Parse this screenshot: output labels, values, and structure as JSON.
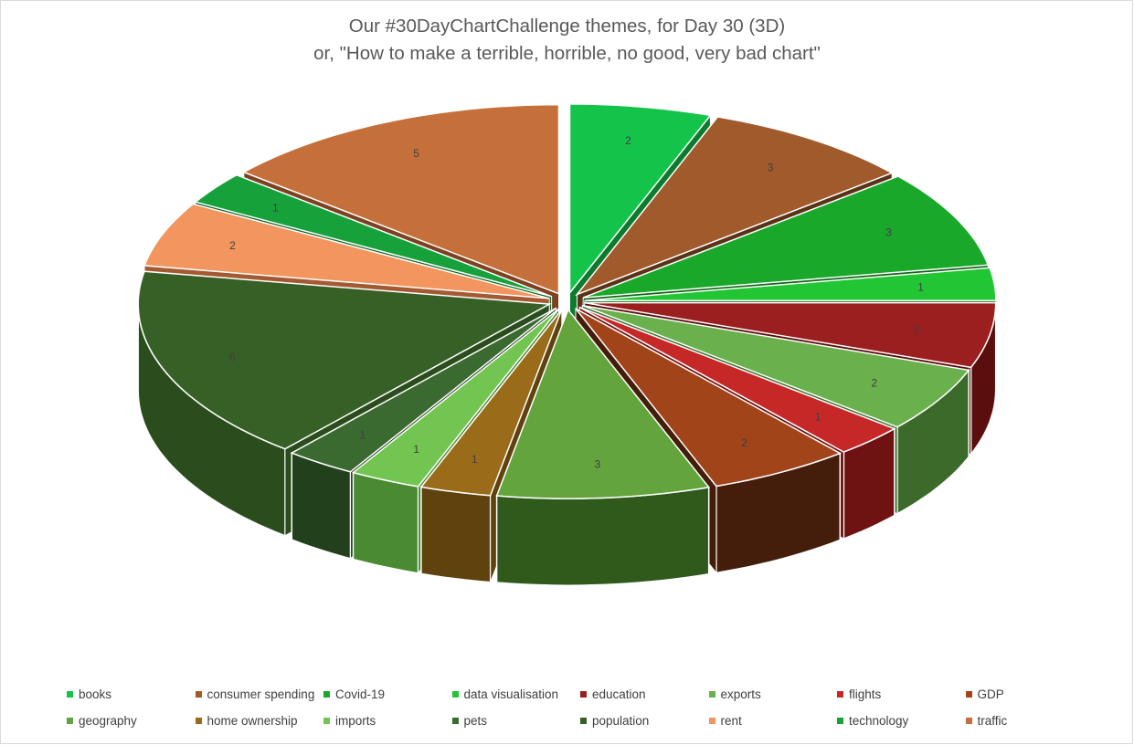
{
  "title_line1": "Our #30DayChartChallenge themes, for Day 30 (3D)",
  "title_line2": "or, \"How to make a terrible, horrible, no good, very bad chart\"",
  "chart_data": {
    "type": "pie",
    "style": "3D exploded pie",
    "legend_position": "bottom",
    "categories": [
      "books",
      "consumer spending",
      "Covid-19",
      "data visualisation",
      "education",
      "exports",
      "flights",
      "GDP",
      "geography",
      "home ownership",
      "imports",
      "pets",
      "population",
      "rent",
      "technology",
      "traffic"
    ],
    "values": [
      2,
      3,
      3,
      1,
      2,
      2,
      1,
      2,
      3,
      1,
      1,
      1,
      6,
      2,
      1,
      5
    ],
    "colors": [
      "#14c44a",
      "#a05a2c",
      "#1aa82a",
      "#22c534",
      "#9b1f1f",
      "#6ab04c",
      "#c62828",
      "#a1441a",
      "#64a43c",
      "#9a6b18",
      "#72c550",
      "#3b6a31",
      "#376026",
      "#f2955f",
      "#17a13a",
      "#c5703a"
    ],
    "side_colors": [
      "#0d7a2e",
      "#5a3218",
      "#106418",
      "#14761f",
      "#5a0e0e",
      "#3c6a2a",
      "#6e1212",
      "#451e0b",
      "#2f5a1c",
      "#5f420e",
      "#4a8a32",
      "#23401d",
      "#2b4d1d",
      "#a35a32",
      "#0e6322",
      "#7a4220"
    ]
  }
}
